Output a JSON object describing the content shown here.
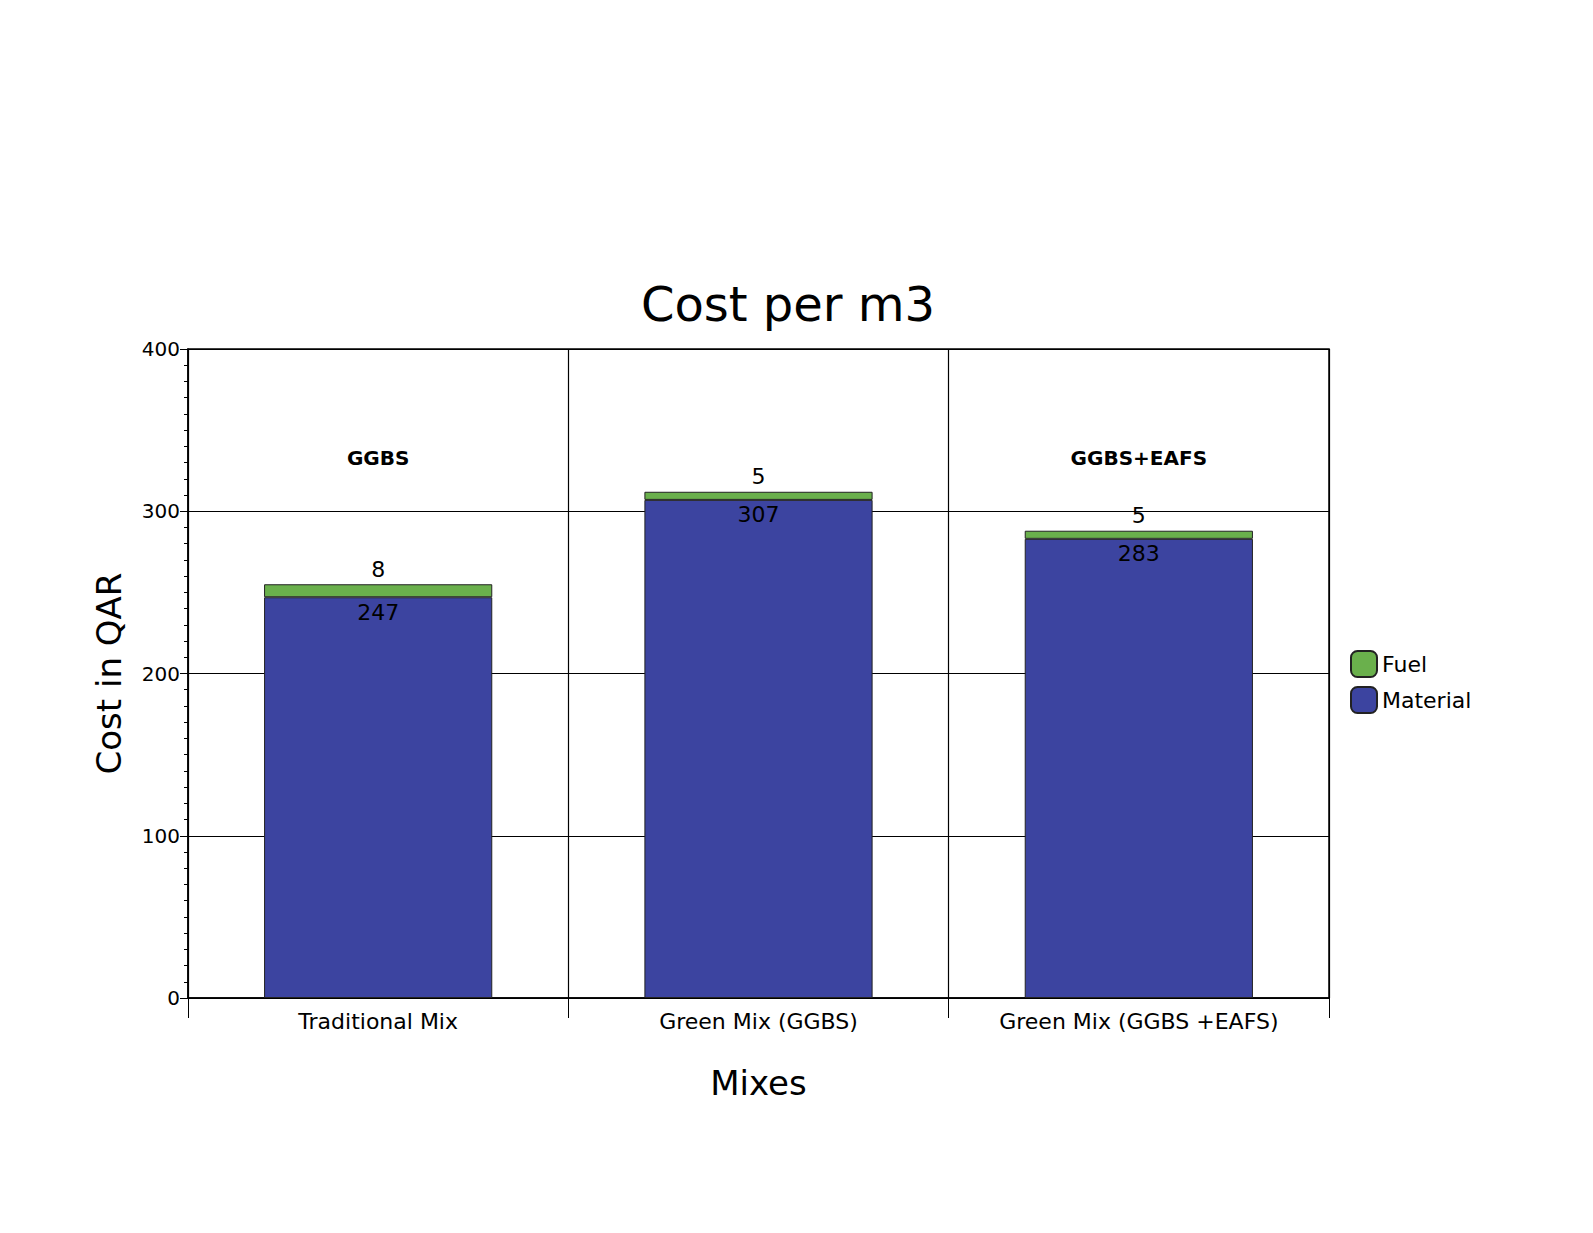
{
  "chart_data": {
    "type": "bar",
    "title": "Cost per m3",
    "x_label": "Mixes",
    "y_label": "Cost in QAR",
    "categories": [
      "Traditional Mix",
      "Green Mix (GGBS)",
      "Green Mix (GGBS +EAFS)"
    ],
    "series": [
      {
        "name": "Material",
        "color": "#3c44a0",
        "values": [
          247,
          307,
          283
        ]
      },
      {
        "name": "Fuel",
        "color": "#6ab04c",
        "values": [
          8,
          5,
          5
        ]
      }
    ],
    "ylim": [
      0,
      400
    ],
    "yticks": [
      0,
      100,
      200,
      300,
      400
    ],
    "stacked": true,
    "grid": true,
    "legend": "right",
    "data_labels": true,
    "annotations": [
      {
        "text": "GGBS",
        "x": "Traditional Mix",
        "y": 333
      },
      {
        "text": "GGBS+EAFS",
        "x": "Green Mix (GGBS +EAFS)",
        "y": 333
      }
    ]
  }
}
